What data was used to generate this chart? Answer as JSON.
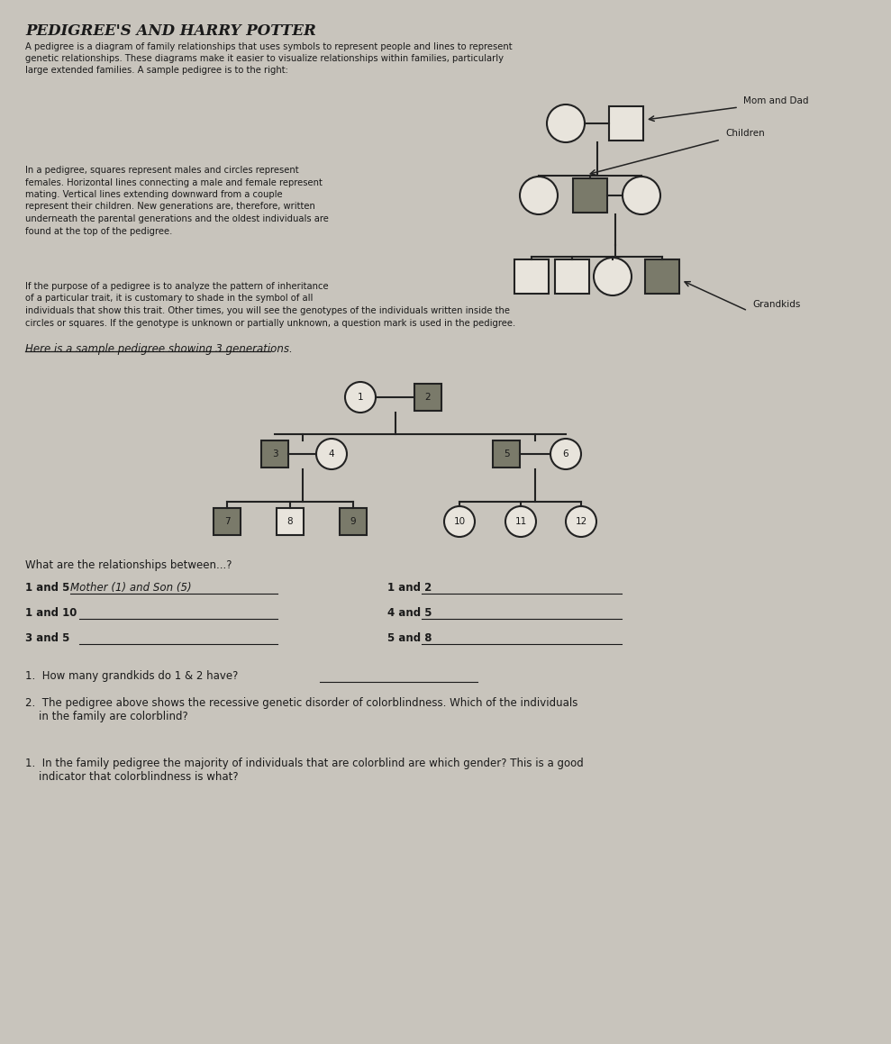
{
  "title": "PEDIGREE'S AND HARRY POTTER",
  "bg_color": "#c8c4bc",
  "text_color": "#1a1a1a",
  "intro_text_lines": [
    "A pedigree is a diagram of family relationships that uses symbols to represent people and lines to represent",
    "genetic relationships. These diagrams make it easier to visualize relationships within families, particularly",
    "large extended families. A sample pedigree is to the right:"
  ],
  "para2_lines": [
    "In a pedigree, squares represent males and circles represent",
    "females. Horizontal lines connecting a male and female represent",
    "mating. Vertical lines extending downward from a couple",
    "represent their children. New generations are, therefore, written",
    "underneath the parental generations and the oldest individuals are",
    "found at the top of the pedigree."
  ],
  "para3_lines": [
    "If the purpose of a pedigree is to analyze the pattern of inheritance",
    "of a particular trait, it is customary to shade in the symbol of all",
    "individuals that show this trait. Other times, you will see the genotypes of the individuals written inside the",
    "circles or squares. If the genotype is unknown or partially unknown, a question mark is used in the pedigree."
  ],
  "here_text": "Here is a sample pedigree showing 3 generations.",
  "q_intro": "What are the relationships between...?",
  "q1a_label": "1 and 5",
  "q1a_answer": "Mother (1) and Son (5)",
  "q1b_label": "1 and 2",
  "q2a_label": "1 and 10",
  "q2b_label": "4 and 5",
  "q3a_label": "3 and 5",
  "q3b_label": "5 and 8",
  "numbered_q1": "1.  How many grandkids do 1 & 2 have?",
  "numbered_q2a": "2.  The pedigree above shows the recessive genetic disorder of colorblindness. Which of the individuals",
  "numbered_q2b": "    in the family are colorblind?",
  "numbered_q3a": "1.  In the family pedigree the majority of individuals that are colorblind are which gender? This is a good",
  "numbered_q3b": "    indicator that colorblindness is what?",
  "shaded_color": "#7a7a6a",
  "unshaded_color": "#e8e4dc",
  "line_color": "#222222"
}
